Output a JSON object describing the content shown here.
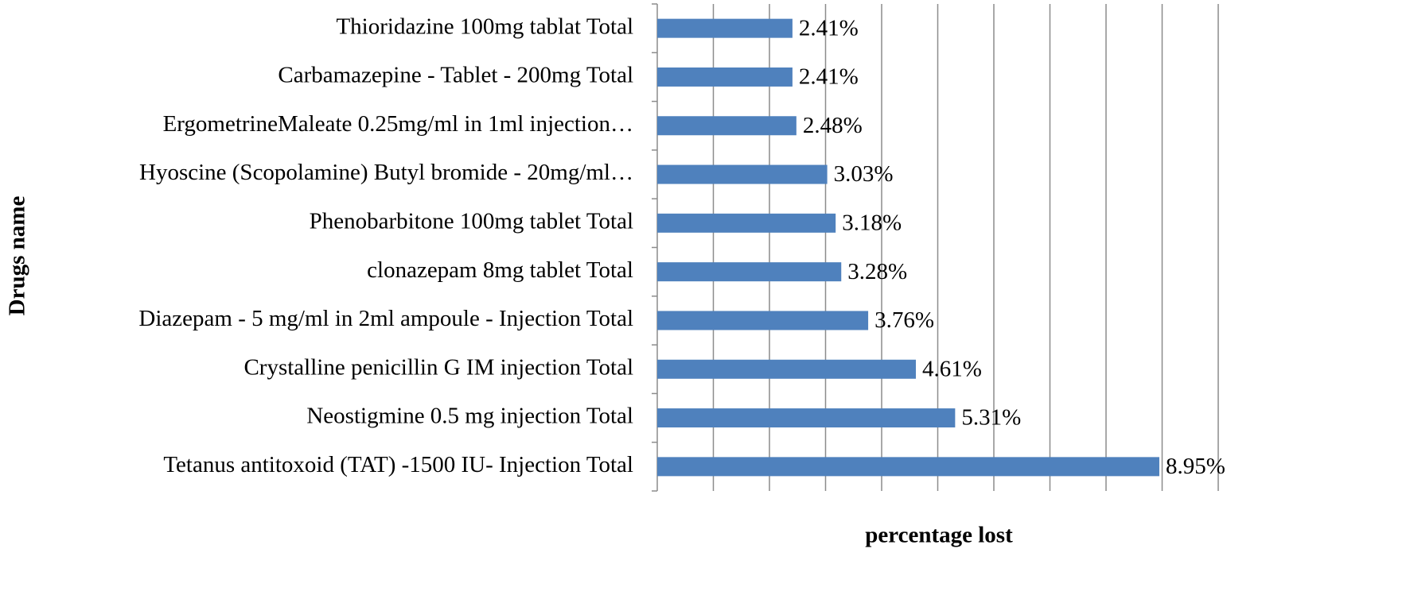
{
  "chart_data": {
    "type": "bar",
    "orientation": "horizontal",
    "x_label": "percentage lost",
    "y_label": "Drugs name",
    "categories": [
      "Thioridazine 100mg tablat Total",
      "Carbamazepine - Tablet - 200mg Total",
      "ErgometrineMaleate 0.25mg/ml in 1ml injection…",
      "Hyoscine (Scopolamine) Butyl bromide - 20mg/ml…",
      "Phenobarbitone  100mg tablet Total",
      "clonazepam 8mg tablet Total",
      "Diazepam - 5 mg/ml in 2ml ampoule - Injection Total",
      "Crystalline  penicillin G IM injection Total",
      "Neostigmine 0.5 mg injection Total",
      "Tetanus antitoxoid (TAT) -1500 IU- Injection Total"
    ],
    "values": [
      2.41,
      2.41,
      2.48,
      3.03,
      3.18,
      3.28,
      3.76,
      4.61,
      5.31,
      8.95
    ],
    "value_labels": [
      "2.41%",
      "2.41%",
      "2.48%",
      "3.03%",
      "3.18%",
      "3.28%",
      "3.76%",
      "4.61%",
      "5.31%",
      "8.95%"
    ],
    "color": "#4f81bd",
    "xlim": [
      0,
      10
    ],
    "xticks": [
      0,
      1,
      2,
      3,
      4,
      5,
      6,
      7,
      8,
      9,
      10
    ],
    "grid": true
  }
}
